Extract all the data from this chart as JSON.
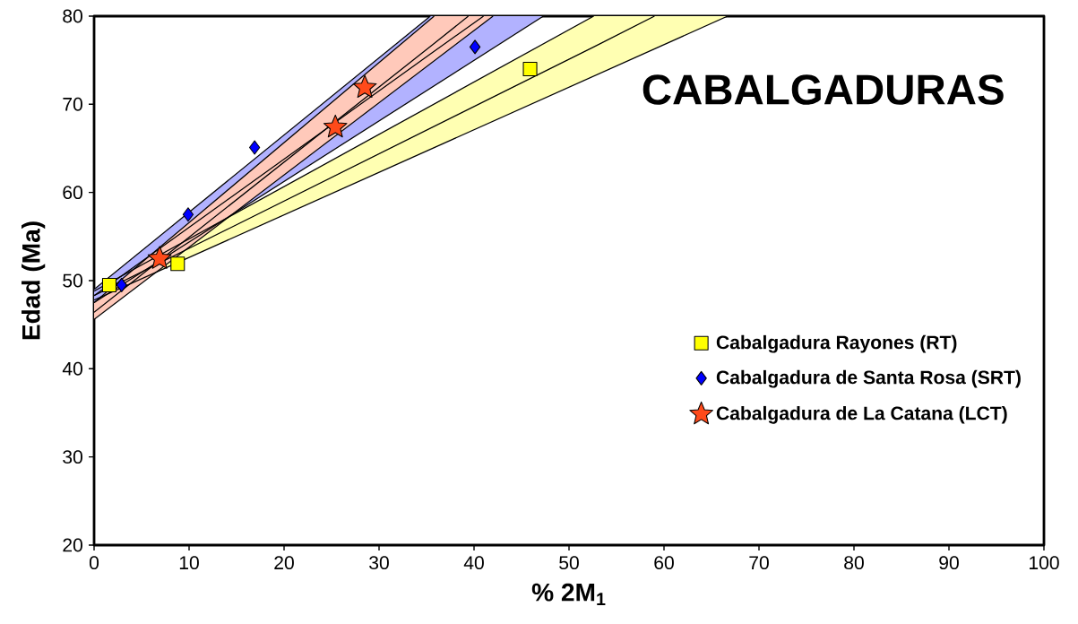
{
  "chart_data": {
    "type": "scatter",
    "title": "CABALGADURAS",
    "xlabel": "% 2M$_{1}$",
    "ylabel": "Edad (Ma)",
    "xlim": [
      0,
      100
    ],
    "ylim": [
      20,
      80
    ],
    "xticks": [
      0,
      10,
      20,
      30,
      40,
      50,
      60,
      70,
      80,
      90,
      100
    ],
    "yticks": [
      20,
      30,
      40,
      50,
      60,
      70,
      80
    ],
    "grid": false,
    "legend": "bottom right",
    "series": [
      {
        "type": "line",
        "color": "#000000",
        "x": [
          0,
          52.6,
          59,
          66.7
        ],
        "values": [
          48.3,
          76.5,
          80,
          null
        ],
        "lower": [
          47.8,
          73.2,
          76.3,
          80
        ],
        "upper": [
          48.8,
          80,
          80,
          80
        ]
      },
      {
        "type": "line",
        "color": "#000000",
        "x": [
          0,
          35.4,
          41,
          47.3
        ],
        "values": [
          48.3,
          75.7,
          80,
          null
        ],
        "lower": [
          47.5,
          71.8,
          75.7,
          80
        ],
        "upper": [
          49.0,
          80,
          80,
          80
        ]
      },
      {
        "type": "line",
        "color": "#000000",
        "x": [
          0,
          35.8,
          39.4,
          42
        ],
        "values": [
          46.4,
          76.9,
          80,
          null
        ],
        "lower": [
          45.6,
          74.9,
          77.9,
          80
        ],
        "upper": [
          47.5,
          80,
          80,
          80
        ]
      },
      {
        "type": "line",
        "color": "#000000",
        "x": [
          0,
          52.6
        ],
        "values": [
          48.8,
          80
        ]
      },
      {
        "type": "line",
        "color": "#000000",
        "x": [
          0,
          66.7
        ],
        "values": [
          47.8,
          80
        ]
      },
      {
        "type": "line",
        "color": "#000000",
        "x": [
          0,
          35.4
        ],
        "values": [
          49.0,
          80
        ]
      },
      {
        "type": "line",
        "color": "#000000",
        "x": [
          0,
          47.3
        ],
        "values": [
          47.5,
          80
        ]
      },
      {
        "type": "line",
        "color": "#000000",
        "x": [
          0,
          35.8
        ],
        "values": [
          47.5,
          80
        ]
      },
      {
        "type": "line",
        "color": "#000000",
        "x": [
          0,
          42
        ],
        "values": [
          45.6,
          80
        ]
      },
      {
        "name": "Cabalgadura Rayones (RT)",
        "color": "#ffff00",
        "marker": "square",
        "x": [
          1.6,
          8.8,
          45.9
        ],
        "values": [
          49.5,
          51.9,
          74.0
        ]
      },
      {
        "name": "Cabalgadura de Santa Rosa (SRT)",
        "color": "#0000ff",
        "marker": "diamond",
        "x": [
          2.9,
          9.9,
          16.9,
          40.1
        ],
        "values": [
          49.5,
          57.5,
          65.1,
          76.5
        ]
      },
      {
        "name": "Cabalgadura de La Catana (LCT)",
        "color": "#ff4a1a",
        "marker": "star",
        "x": [
          6.9,
          25.4,
          28.5
        ],
        "values": [
          52.5,
          67.4,
          71.9
        ]
      }
    ]
  }
}
